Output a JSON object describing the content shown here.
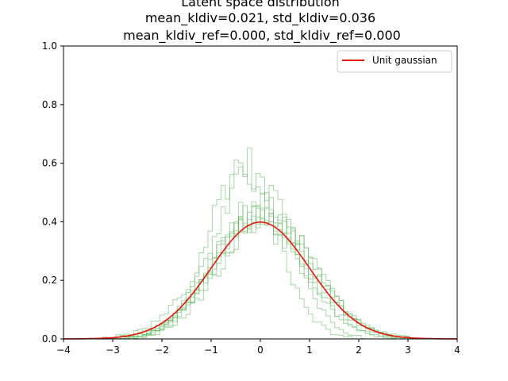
{
  "chart_data": {
    "type": "line",
    "title_lines": [
      "Latent space distribution",
      "mean_kldiv=0.021, std_kldiv=0.036",
      "mean_kldiv_ref=0.000, std_kldiv_ref=0.000"
    ],
    "xlabel": "",
    "ylabel": "",
    "xlim": [
      -4,
      4
    ],
    "ylim": [
      0,
      1.0
    ],
    "xticks": [
      -4,
      -3,
      -2,
      -1,
      0,
      1,
      2,
      3,
      4
    ],
    "xtick_labels": [
      "−4",
      "−3",
      "−2",
      "−1",
      "0",
      "1",
      "2",
      "3",
      "4"
    ],
    "yticks": [
      0.0,
      0.2,
      0.4,
      0.6,
      0.8,
      1.0
    ],
    "ytick_labels": [
      "0.0",
      "0.2",
      "0.4",
      "0.6",
      "0.8",
      "1.0"
    ],
    "grid": false,
    "legend_position": "top-right",
    "reference_curve": {
      "name": "Unit gaussian",
      "color": "#e8160c",
      "mu": 0,
      "sigma": 1
    },
    "histogram_color": "#5cb85c",
    "histograms": [
      {
        "mu": -0.35,
        "sigma": 0.7,
        "peak": 0.6
      },
      {
        "mu": 0.05,
        "sigma": 0.95,
        "peak": 0.43
      },
      {
        "mu": -0.15,
        "sigma": 0.75,
        "peak": 0.56
      },
      {
        "mu": 0.1,
        "sigma": 0.98,
        "peak": 0.42
      },
      {
        "mu": -0.05,
        "sigma": 0.88,
        "peak": 0.46
      },
      {
        "mu": 0.0,
        "sigma": 1.0,
        "peak": 0.4
      },
      {
        "mu": 0.15,
        "sigma": 0.92,
        "peak": 0.44
      },
      {
        "mu": -0.2,
        "sigma": 0.97,
        "peak": 0.41
      }
    ]
  }
}
